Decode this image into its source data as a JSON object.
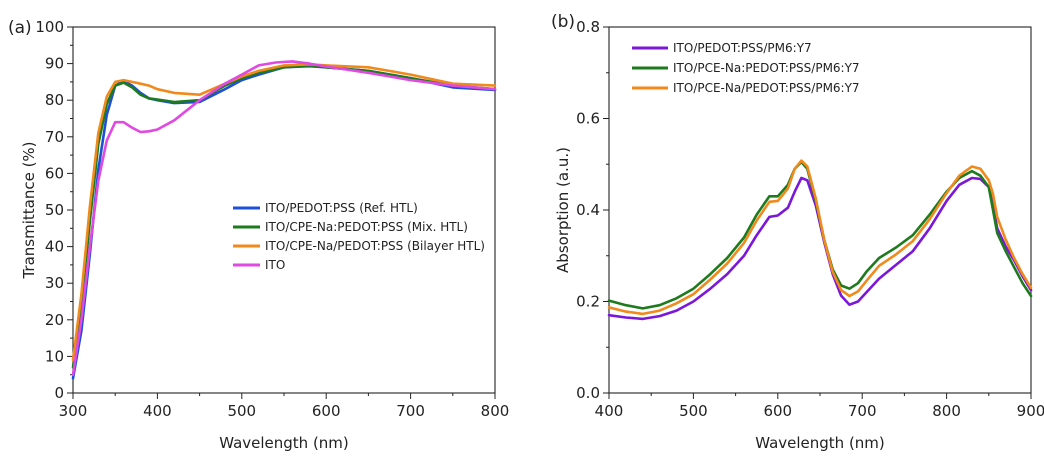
{
  "chart_data": [
    {
      "panel_label": "(a)",
      "type": "line",
      "xlabel": "Wavelength (nm)",
      "ylabel": "Transmittance (%)",
      "xlim": [
        300,
        800
      ],
      "ylim": [
        0,
        100
      ],
      "xticks": [
        300,
        400,
        500,
        600,
        700,
        800
      ],
      "yticks": [
        0,
        10,
        20,
        30,
        40,
        50,
        60,
        70,
        80,
        90,
        100
      ],
      "legend_position": "center-right",
      "series": [
        {
          "name": "ITO/PEDOT:PSS (Ref. HTL)",
          "color": "#1f4fd8",
          "x": [
            300,
            310,
            320,
            330,
            340,
            350,
            360,
            370,
            380,
            390,
            400,
            420,
            450,
            480,
            500,
            520,
            550,
            580,
            600,
            650,
            700,
            750,
            800
          ],
          "y": [
            4,
            17,
            38,
            61,
            76,
            84,
            85.3,
            84,
            82,
            80.5,
            80,
            79.2,
            79.5,
            83,
            85.5,
            87,
            89,
            89.3,
            89,
            88,
            86,
            83.5,
            82.8
          ]
        },
        {
          "name": "ITO/CPE-Na:PEDOT:PSS (Mix. HTL)",
          "color": "#1d7a1d",
          "x": [
            300,
            310,
            320,
            330,
            340,
            350,
            360,
            370,
            380,
            390,
            400,
            420,
            450,
            480,
            500,
            520,
            550,
            580,
            600,
            650,
            700,
            750,
            800
          ],
          "y": [
            7,
            24,
            47,
            68,
            79,
            84,
            84.8,
            83.5,
            81.5,
            80.5,
            80.2,
            79.5,
            80,
            84,
            86,
            87.5,
            89,
            89.5,
            89,
            88,
            86,
            84,
            83
          ]
        },
        {
          "name": "ITO/CPE-Na/PEDOT:PSS (Bilayer HTL)",
          "color": "#f08a1c",
          "x": [
            300,
            310,
            320,
            330,
            340,
            350,
            360,
            370,
            380,
            390,
            400,
            420,
            450,
            480,
            500,
            520,
            550,
            580,
            600,
            650,
            700,
            750,
            800
          ],
          "y": [
            9,
            27,
            51,
            71,
            81,
            85,
            85.5,
            85,
            84.5,
            84,
            83,
            82,
            81.5,
            84.5,
            86.5,
            88,
            89.5,
            89.8,
            89.5,
            89,
            87,
            84.5,
            84
          ]
        },
        {
          "name": "ITO",
          "color": "#e04ae0",
          "x": [
            300,
            310,
            320,
            330,
            340,
            350,
            360,
            370,
            380,
            390,
            400,
            420,
            450,
            480,
            500,
            520,
            540,
            560,
            580,
            600,
            650,
            700,
            750,
            800
          ],
          "y": [
            5,
            20,
            40,
            58,
            69,
            74,
            74,
            72.5,
            71.3,
            71.5,
            72,
            74.5,
            80,
            84.5,
            87,
            89.5,
            90.3,
            90.6,
            90,
            89.2,
            87.5,
            85.5,
            84,
            83
          ]
        }
      ]
    },
    {
      "panel_label": "(b)",
      "type": "line",
      "xlabel": "Wavelength (nm)",
      "ylabel": "Absorption (a.u.)",
      "xlim": [
        400,
        900
      ],
      "ylim": [
        0,
        0.8
      ],
      "xticks": [
        400,
        500,
        600,
        700,
        800,
        900
      ],
      "yticks": [
        "0.0",
        "0.2",
        "0.4",
        "0.6",
        "0.8"
      ],
      "legend_position": "top-left",
      "series": [
        {
          "name": "ITO/PEDOT:PSS/PM6:Y7",
          "color": "#7b17d9",
          "x": [
            400,
            420,
            440,
            460,
            480,
            500,
            520,
            540,
            560,
            575,
            590,
            600,
            612,
            620,
            628,
            635,
            645,
            655,
            665,
            675,
            685,
            695,
            705,
            720,
            740,
            760,
            780,
            800,
            815,
            830,
            840,
            850,
            855,
            860,
            870,
            880,
            890,
            900
          ],
          "y": [
            0.17,
            0.165,
            0.162,
            0.168,
            0.18,
            0.2,
            0.228,
            0.26,
            0.3,
            0.345,
            0.385,
            0.388,
            0.405,
            0.44,
            0.47,
            0.465,
            0.41,
            0.33,
            0.26,
            0.213,
            0.193,
            0.2,
            0.22,
            0.25,
            0.28,
            0.31,
            0.36,
            0.42,
            0.455,
            0.47,
            0.468,
            0.45,
            0.41,
            0.36,
            0.32,
            0.29,
            0.255,
            0.225
          ]
        },
        {
          "name": "ITO/PCE-Na:PEDOT:PSS/PM6:Y7",
          "color": "#1d7a1d",
          "x": [
            400,
            420,
            440,
            460,
            480,
            500,
            520,
            540,
            560,
            575,
            590,
            600,
            612,
            620,
            628,
            635,
            645,
            655,
            665,
            675,
            685,
            695,
            705,
            720,
            740,
            760,
            780,
            800,
            815,
            830,
            840,
            850,
            855,
            860,
            870,
            880,
            890,
            900
          ],
          "y": [
            0.202,
            0.192,
            0.185,
            0.192,
            0.207,
            0.228,
            0.26,
            0.295,
            0.34,
            0.39,
            0.43,
            0.43,
            0.455,
            0.49,
            0.505,
            0.49,
            0.42,
            0.335,
            0.27,
            0.235,
            0.228,
            0.24,
            0.265,
            0.295,
            0.318,
            0.345,
            0.39,
            0.44,
            0.47,
            0.485,
            0.475,
            0.45,
            0.4,
            0.35,
            0.31,
            0.275,
            0.24,
            0.212
          ]
        },
        {
          "name": "ITO/PCE-Na/PEDOT:PSS/PM6:Y7",
          "color": "#f08a1c",
          "x": [
            400,
            420,
            440,
            460,
            480,
            500,
            520,
            540,
            560,
            575,
            590,
            600,
            612,
            620,
            628,
            635,
            645,
            655,
            665,
            675,
            685,
            695,
            705,
            720,
            740,
            760,
            780,
            800,
            815,
            830,
            840,
            850,
            855,
            860,
            870,
            880,
            890,
            900
          ],
          "y": [
            0.187,
            0.178,
            0.173,
            0.18,
            0.196,
            0.216,
            0.248,
            0.283,
            0.328,
            0.377,
            0.418,
            0.42,
            0.447,
            0.49,
            0.508,
            0.495,
            0.425,
            0.335,
            0.265,
            0.225,
            0.212,
            0.222,
            0.245,
            0.278,
            0.303,
            0.332,
            0.38,
            0.437,
            0.475,
            0.495,
            0.49,
            0.465,
            0.435,
            0.385,
            0.335,
            0.295,
            0.26,
            0.23
          ]
        }
      ]
    }
  ]
}
